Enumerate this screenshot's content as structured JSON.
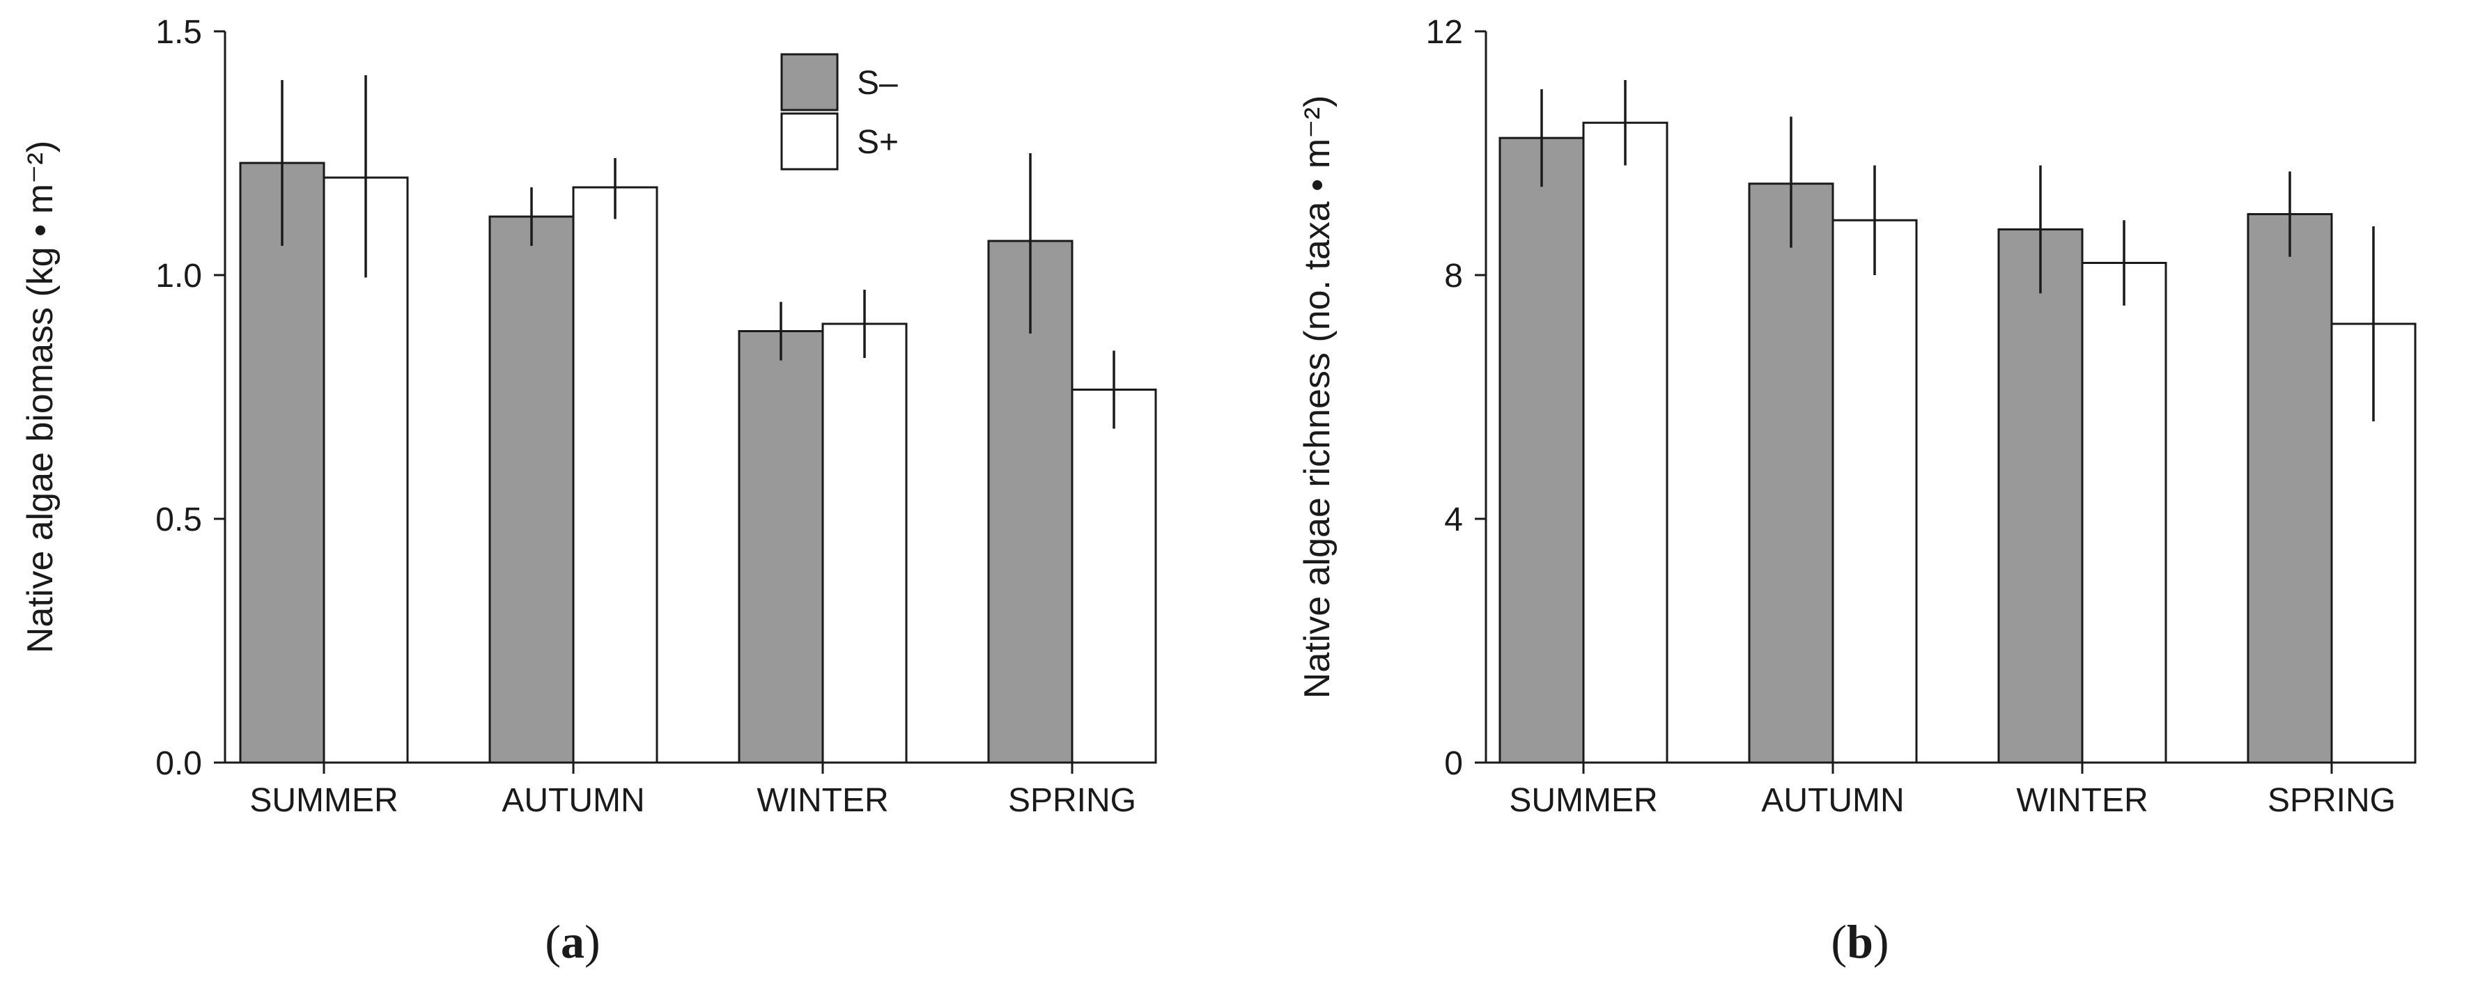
{
  "chart_data": [
    {
      "type": "bar",
      "panel_label": "a",
      "title": "",
      "xlabel": "",
      "ylabel": "Native algae biomass (kg • m⁻²)",
      "ylim": [
        0,
        1.5
      ],
      "yticks": [
        "0.0",
        "0.5",
        "1.0",
        "1.5"
      ],
      "ytick_values": [
        0,
        0.5,
        1.0,
        1.5
      ],
      "categories": [
        "SUMMER",
        "AUTUMN",
        "WINTER",
        "SPRING"
      ],
      "grid": false,
      "legend": {
        "position": "top-center",
        "entries": [
          "S–",
          "S+"
        ]
      },
      "series": [
        {
          "name": "S–",
          "color": "#999999",
          "values": [
            1.23,
            1.12,
            0.885,
            1.07
          ],
          "err_low": [
            1.06,
            1.06,
            0.825,
            0.88
          ],
          "err_high": [
            1.4,
            1.18,
            0.945,
            1.25
          ]
        },
        {
          "name": "S+",
          "color": "#ffffff",
          "values": [
            1.2,
            1.18,
            0.9,
            0.765
          ],
          "err_low": [
            0.995,
            1.115,
            0.83,
            0.685
          ],
          "err_high": [
            1.41,
            1.24,
            0.97,
            0.845
          ]
        }
      ]
    },
    {
      "type": "bar",
      "panel_label": "b",
      "title": "",
      "xlabel": "",
      "ylabel": "Native algae richness (no. taxa • m⁻²)",
      "ylim": [
        0,
        12
      ],
      "yticks": [
        "0",
        "4",
        "8",
        "12"
      ],
      "ytick_values": [
        0,
        4,
        8,
        12
      ],
      "categories": [
        "SUMMER",
        "AUTUMN",
        "WINTER",
        "SPRING"
      ],
      "grid": false,
      "legend": null,
      "series": [
        {
          "name": "S–",
          "color": "#999999",
          "values": [
            10.25,
            9.5,
            8.75,
            9.0
          ],
          "err_low": [
            9.45,
            8.45,
            7.7,
            8.3
          ],
          "err_high": [
            11.05,
            10.6,
            9.8,
            9.7
          ]
        },
        {
          "name": "S+",
          "color": "#ffffff",
          "values": [
            10.5,
            8.9,
            8.2,
            7.2
          ],
          "err_low": [
            9.8,
            8.0,
            7.5,
            5.6
          ],
          "err_high": [
            11.2,
            9.8,
            8.9,
            8.8
          ]
        }
      ]
    }
  ]
}
